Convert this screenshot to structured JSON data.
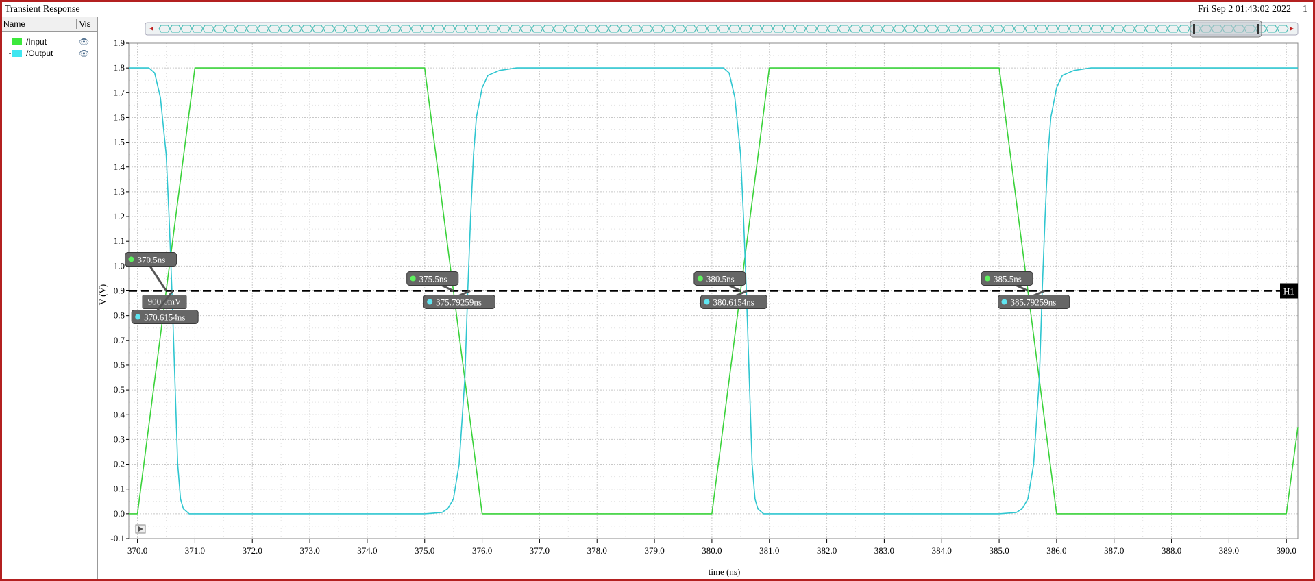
{
  "window": {
    "title": "Transient Response",
    "timestamp": "Fri Sep 2 01:43:02 2022",
    "subwindow": "1"
  },
  "legend": {
    "header_name": "Name",
    "header_vis": "Vis",
    "items": [
      {
        "label": "/Input",
        "color": "#3ce83c",
        "icon": "eye-icon"
      },
      {
        "label": "/Output",
        "color": "#3fe6f0",
        "icon": "eye-icon"
      }
    ]
  },
  "chart_data": {
    "type": "line",
    "xlabel": "time (ns)",
    "ylabel": "V (V)",
    "xlim": [
      369.85,
      390.2
    ],
    "ylim": [
      -0.1,
      1.9
    ],
    "xticks": [
      370.0,
      371.0,
      372.0,
      373.0,
      374.0,
      375.0,
      376.0,
      377.0,
      378.0,
      379.0,
      380.0,
      381.0,
      382.0,
      383.0,
      384.0,
      385.0,
      386.0,
      387.0,
      388.0,
      389.0,
      390.0
    ],
    "yticks": [
      -0.1,
      0.0,
      0.1,
      0.2,
      0.3,
      0.4,
      0.5,
      0.6,
      0.7,
      0.8,
      0.9,
      1.0,
      1.1,
      1.2,
      1.3,
      1.4,
      1.5,
      1.6,
      1.7,
      1.8,
      1.9
    ],
    "grid": true,
    "series": [
      {
        "name": "/Input",
        "color": "#3ad23a",
        "x": [
          369.85,
          370.0,
          371.0,
          375.0,
          376.0,
          380.0,
          381.0,
          385.0,
          386.0,
          390.0,
          390.2
        ],
        "y": [
          0.0,
          0.0,
          1.8,
          1.8,
          0.0,
          0.0,
          1.8,
          1.8,
          0.0,
          0.0,
          0.35
        ]
      },
      {
        "name": "/Output",
        "color": "#2fc6d0",
        "x": [
          369.85,
          370.2,
          370.3,
          370.4,
          370.5,
          370.55,
          370.6,
          370.65,
          370.7,
          370.75,
          370.8,
          370.9,
          371.2,
          375.0,
          375.3,
          375.4,
          375.5,
          375.6,
          375.7,
          375.75,
          375.8,
          375.85,
          375.9,
          376.0,
          376.1,
          376.3,
          376.6,
          380.2,
          380.3,
          380.4,
          380.5,
          380.55,
          380.6,
          380.65,
          380.7,
          380.75,
          380.8,
          380.9,
          381.2,
          385.0,
          385.3,
          385.4,
          385.5,
          385.6,
          385.7,
          385.75,
          385.8,
          385.85,
          385.9,
          386.0,
          386.1,
          386.3,
          386.6,
          390.2
        ],
        "y": [
          1.8,
          1.8,
          1.78,
          1.68,
          1.45,
          1.2,
          0.9,
          0.55,
          0.2,
          0.06,
          0.02,
          0.0,
          0.0,
          0.0,
          0.005,
          0.02,
          0.06,
          0.2,
          0.55,
          0.9,
          1.2,
          1.45,
          1.6,
          1.72,
          1.77,
          1.79,
          1.8,
          1.8,
          1.78,
          1.68,
          1.45,
          1.2,
          0.9,
          0.55,
          0.2,
          0.06,
          0.02,
          0.0,
          0.0,
          0.0,
          0.005,
          0.02,
          0.06,
          0.2,
          0.55,
          0.9,
          1.2,
          1.45,
          1.6,
          1.72,
          1.77,
          1.79,
          1.8,
          1.8
        ]
      }
    ],
    "hline": {
      "y": 0.9,
      "label": "H1",
      "value_label": "900.0mV"
    },
    "markers": [
      {
        "x": 370.5,
        "y": 0.9,
        "label": "370.5ns",
        "series": "/Input",
        "side": "above"
      },
      {
        "x": 370.6154,
        "y": 0.9,
        "label": "370.6154ns",
        "series": "/Output",
        "side": "below"
      },
      {
        "x": 375.5,
        "y": 0.9,
        "label": "375.5ns",
        "series": "/Input",
        "side": "above"
      },
      {
        "x": 375.79259,
        "y": 0.9,
        "label": "375.79259ns",
        "series": "/Output",
        "side": "below"
      },
      {
        "x": 380.5,
        "y": 0.9,
        "label": "380.5ns",
        "series": "/Input",
        "side": "above"
      },
      {
        "x": 380.6154,
        "y": 0.9,
        "label": "380.6154ns",
        "series": "/Output",
        "side": "below"
      },
      {
        "x": 385.5,
        "y": 0.9,
        "label": "385.5ns",
        "series": "/Input",
        "side": "above"
      },
      {
        "x": 385.79259,
        "y": 0.9,
        "label": "385.79259ns",
        "series": "/Output",
        "side": "below"
      }
    ]
  }
}
